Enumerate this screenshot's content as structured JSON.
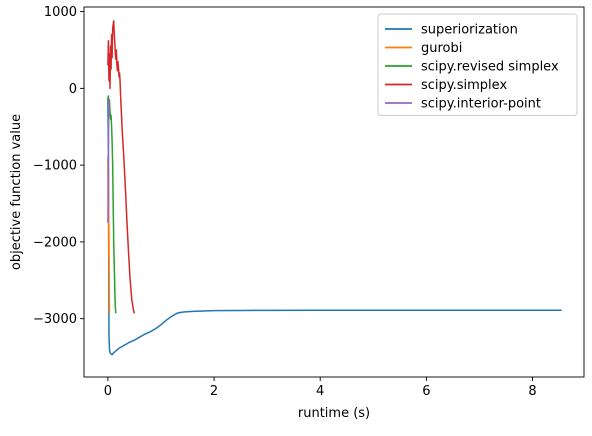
{
  "chart_data": {
    "type": "line",
    "title": "",
    "xlabel": "runtime (s)",
    "ylabel": "objective function value",
    "xlim": [
      -0.45,
      8.97
    ],
    "ylim": [
      -3760,
      1060
    ],
    "xticks": [
      0,
      2,
      4,
      6,
      8
    ],
    "yticks": [
      -3000,
      -2000,
      -1000,
      0,
      1000
    ],
    "xtick_labels": [
      "0",
      "2",
      "4",
      "6",
      "8"
    ],
    "ytick_labels": [
      "−3000",
      "−2000",
      "−1000",
      "0",
      "1000"
    ],
    "grid": false,
    "legend_position": "top-right",
    "series": [
      {
        "name": "superiorization",
        "color": "#1f77b4",
        "x": [
          0.0,
          0.01,
          0.02,
          0.03,
          0.04,
          0.06,
          0.08,
          0.1,
          0.15,
          0.2,
          0.3,
          0.4,
          0.5,
          0.6,
          0.7,
          0.8,
          0.9,
          1.0,
          1.1,
          1.2,
          1.3,
          1.4,
          1.6,
          1.8,
          2.0,
          2.5,
          3.0,
          4.0,
          5.0,
          6.0,
          7.0,
          8.0,
          8.55
        ],
        "y": [
          -120,
          -900,
          -3200,
          -3400,
          -3440,
          -3460,
          -3470,
          -3450,
          -3420,
          -3390,
          -3350,
          -3310,
          -3280,
          -3240,
          -3200,
          -3170,
          -3130,
          -3080,
          -3020,
          -2970,
          -2930,
          -2915,
          -2905,
          -2900,
          -2895,
          -2893,
          -2892,
          -2891,
          -2891,
          -2891,
          -2891,
          -2891,
          -2891
        ]
      },
      {
        "name": "gurobi",
        "color": "#ff7f0e",
        "x": [
          0.0,
          0.005,
          0.01,
          0.015,
          0.02,
          0.025,
          0.03
        ],
        "y": [
          -900,
          -1700,
          -1100,
          -2200,
          -1800,
          -2600,
          -2930
        ]
      },
      {
        "name": "scipy.revised simplex",
        "color": "#2ca02c",
        "x": [
          0.0,
          0.01,
          0.02,
          0.03,
          0.04,
          0.05,
          0.06,
          0.07,
          0.08,
          0.09,
          0.1,
          0.11,
          0.12,
          0.13,
          0.14,
          0.15
        ],
        "y": [
          -200,
          -100,
          -250,
          -150,
          -300,
          -400,
          -350,
          -500,
          -700,
          -1000,
          -1500,
          -2000,
          -2300,
          -2600,
          -2850,
          -2930
        ]
      },
      {
        "name": "scipy.simplex",
        "color": "#d62728",
        "x": [
          0.0,
          0.01,
          0.02,
          0.03,
          0.04,
          0.05,
          0.06,
          0.07,
          0.08,
          0.09,
          0.1,
          0.11,
          0.12,
          0.13,
          0.14,
          0.15,
          0.16,
          0.17,
          0.18,
          0.19,
          0.2,
          0.21,
          0.22,
          0.23,
          0.24,
          0.25,
          0.27,
          0.3,
          0.33,
          0.36,
          0.39,
          0.42,
          0.45,
          0.48,
          0.5
        ],
        "y": [
          300,
          620,
          100,
          450,
          0,
          550,
          250,
          700,
          400,
          780,
          830,
          880,
          720,
          600,
          450,
          380,
          500,
          300,
          230,
          350,
          260,
          150,
          200,
          80,
          -100,
          -250,
          -550,
          -900,
          -1300,
          -1750,
          -2150,
          -2500,
          -2750,
          -2880,
          -2930
        ]
      },
      {
        "name": "scipy.interior-point",
        "color": "#9467bd",
        "x": [
          0.0,
          0.005,
          0.01,
          0.015,
          0.02,
          0.025,
          0.03
        ],
        "y": [
          -1750,
          -1500,
          -800,
          -400,
          -150,
          -200,
          -250
        ]
      }
    ]
  }
}
